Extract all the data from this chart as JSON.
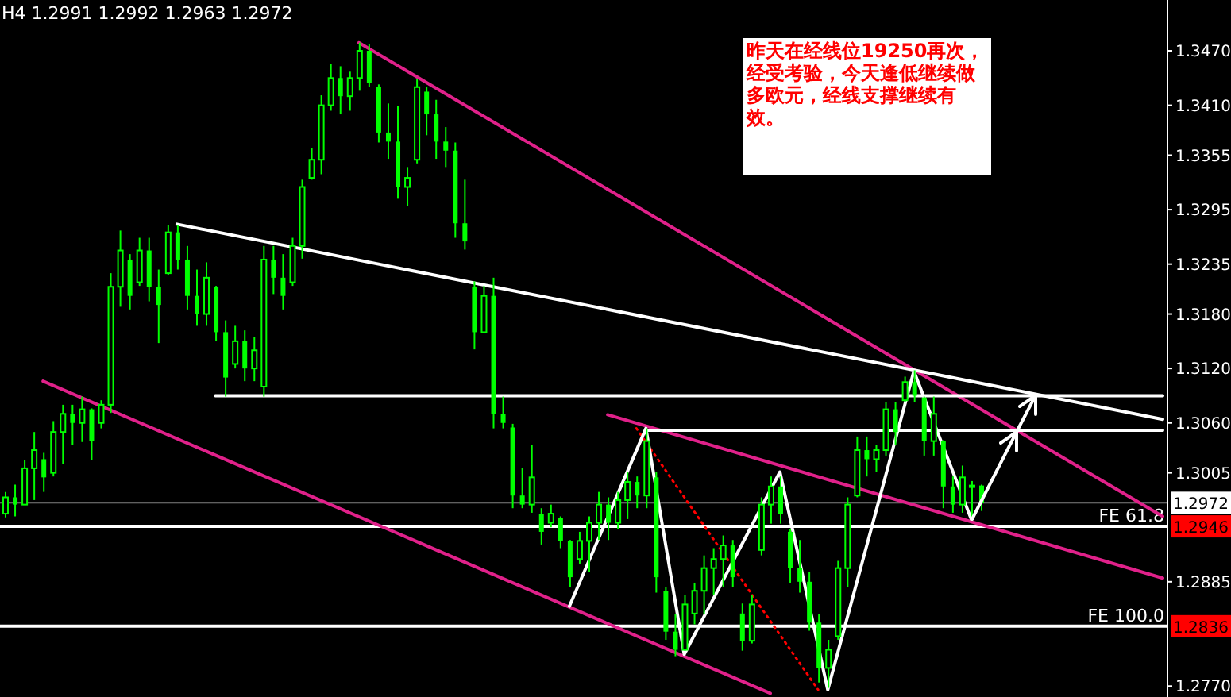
{
  "chart_data": {
    "type": "candlestick",
    "title": "H4 1.2991 1.2992 1.2963 1.2972",
    "annotations": [
      "昨天在经线位19250再次，经受考验，今天逢低继续做多欧元，经线支撑继续有效。",
      {
        "text": "1.2972",
        "y": 1.2972
      },
      {
        "text": "1.2946",
        "y": 1.2946
      },
      {
        "text": "1.2836",
        "y": 1.2836
      }
    ],
    "color": "#00ff00",
    "grid": false,
    "tick_labels": "y",
    "ylim": [
      1.2758,
      1.3526
    ],
    "yticks": [
      {
        "value": 1.347,
        "label": "1.3470"
      },
      {
        "value": 1.341,
        "label": "1.3410"
      },
      1.3355,
      1.3295,
      1.3235,
      {
        "value": 1.318,
        "label": "1.3180"
      },
      {
        "value": 1.312,
        "label": "1.3120"
      },
      {
        "value": 1.306,
        "label": "1.3060"
      },
      1.3005,
      1.2885,
      {
        "value": 1.277,
        "label": "1.2770"
      }
    ],
    "ref_lines": [
      {
        "axis": "y",
        "value": 1.2972,
        "label": null,
        "color": "#808080"
      },
      {
        "axis": "y",
        "value": 1.2946,
        "label": "FE 61.8",
        "color": "#ffffff"
      },
      {
        "axis": "y",
        "value": 1.2836,
        "label": "FE 100.0",
        "color": "#ffffff"
      }
    ],
    "categories": [
      null,
      null,
      null,
      null,
      null,
      null,
      null,
      null,
      null,
      null,
      null,
      null,
      null,
      null,
      null,
      null,
      null,
      null,
      null,
      null,
      null,
      null,
      null,
      null,
      null,
      null,
      null,
      null,
      null,
      null,
      null,
      null,
      null,
      null,
      null,
      null,
      null,
      null,
      null,
      null,
      null,
      null,
      null,
      null,
      null,
      null,
      null,
      null,
      null,
      null,
      null,
      null,
      null,
      null,
      null,
      null,
      null,
      null,
      null,
      null,
      null,
      null,
      null,
      null,
      null,
      null,
      null,
      null,
      null,
      null,
      null,
      null,
      null,
      null,
      null,
      null,
      null,
      null,
      null,
      null,
      null,
      null,
      null,
      null,
      null,
      null,
      null,
      null,
      null,
      null,
      null,
      null,
      null,
      null,
      null,
      null,
      null,
      null,
      null,
      null,
      null,
      null,
      null,
      null,
      null,
      null,
      null,
      null,
      null,
      null,
      null,
      null,
      null,
      null,
      null,
      null,
      null,
      null,
      null,
      null,
      null,
      null
    ],
    "ohlc": [
      [
        1.296,
        1.2984,
        1.2956,
        1.2978
      ],
      [
        1.2978,
        1.2992,
        1.2957,
        1.297
      ],
      [
        1.297,
        1.3019,
        1.297,
        1.301
      ],
      [
        1.301,
        1.305,
        1.2975,
        1.303
      ],
      [
        1.302,
        1.3027,
        1.2984,
        1.3
      ],
      [
        1.3005,
        1.3062,
        1.3001,
        1.305
      ],
      [
        1.305,
        1.308,
        1.3015,
        1.307
      ],
      [
        1.307,
        1.308,
        1.3036,
        1.306
      ],
      [
        1.306,
        1.3089,
        1.3039,
        1.3075
      ],
      [
        1.3075,
        1.3076,
        1.3019,
        1.304
      ],
      [
        1.306,
        1.3085,
        1.3054,
        1.308
      ],
      [
        1.308,
        1.3225,
        1.3071,
        1.321
      ],
      [
        1.321,
        1.3272,
        1.3188,
        1.325
      ],
      [
        1.324,
        1.3246,
        1.3185,
        1.32
      ],
      [
        1.3215,
        1.3264,
        1.3211,
        1.325
      ],
      [
        1.325,
        1.3264,
        1.3194,
        1.321
      ],
      [
        1.321,
        1.3229,
        1.3148,
        1.319
      ],
      [
        1.3225,
        1.3278,
        1.3223,
        1.327
      ],
      [
        1.327,
        1.3278,
        1.3229,
        1.324
      ],
      [
        1.324,
        1.3255,
        1.3185,
        1.32
      ],
      [
        1.32,
        1.3229,
        1.3167,
        1.318
      ],
      [
        1.318,
        1.3237,
        1.3167,
        1.322
      ],
      [
        1.321,
        1.3211,
        1.315,
        1.316
      ],
      [
        1.316,
        1.3173,
        1.3089,
        1.311
      ],
      [
        1.3125,
        1.3167,
        1.312,
        1.315
      ],
      [
        1.315,
        1.3162,
        1.3106,
        1.312
      ],
      [
        1.312,
        1.3155,
        1.3106,
        1.314
      ],
      [
        1.31,
        1.3255,
        1.3089,
        1.324
      ],
      [
        1.324,
        1.3255,
        1.3202,
        1.322
      ],
      [
        1.322,
        1.3246,
        1.3185,
        1.32
      ],
      [
        1.3215,
        1.3264,
        1.3211,
        1.3255
      ],
      [
        1.3255,
        1.3328,
        1.3241,
        1.332
      ],
      [
        1.333,
        1.3363,
        1.3328,
        1.335
      ],
      [
        1.335,
        1.3421,
        1.3334,
        1.341
      ],
      [
        1.341,
        1.3456,
        1.3404,
        1.344
      ],
      [
        1.344,
        1.3453,
        1.34,
        1.342
      ],
      [
        1.342,
        1.3447,
        1.3404,
        1.344
      ],
      [
        1.344,
        1.3479,
        1.3426,
        1.347
      ],
      [
        1.347,
        1.3477,
        1.343,
        1.3435
      ],
      [
        1.343,
        1.3433,
        1.3369,
        1.338
      ],
      [
        1.338,
        1.3412,
        1.3351,
        1.337
      ],
      [
        1.337,
        1.3409,
        1.3307,
        1.332
      ],
      [
        1.332,
        1.3342,
        1.3299,
        1.333
      ],
      [
        1.335,
        1.3439,
        1.3346,
        1.343
      ],
      [
        1.3425,
        1.343,
        1.3377,
        1.34
      ],
      [
        1.34,
        1.3416,
        1.3351,
        1.337
      ],
      [
        1.337,
        1.3386,
        1.3342,
        1.336
      ],
      [
        1.336,
        1.3369,
        1.3264,
        1.328
      ],
      [
        1.328,
        1.3328,
        1.3251,
        1.326
      ],
      [
        1.321,
        1.3216,
        1.3141,
        1.316
      ],
      [
        1.316,
        1.3211,
        1.3159,
        1.32
      ],
      [
        1.32,
        1.322,
        1.3054,
        1.307
      ],
      [
        1.307,
        1.3089,
        1.3054,
        1.306
      ],
      [
        1.3055,
        1.3059,
        1.2966,
        1.298
      ],
      [
        1.298,
        1.301,
        1.2966,
        1.297
      ],
      [
        1.297,
        1.3036,
        1.2961,
        1.3
      ],
      [
        1.296,
        1.2966,
        1.2926,
        1.294
      ],
      [
        1.295,
        1.297,
        1.2945,
        1.296
      ],
      [
        1.2955,
        1.2957,
        1.2922,
        1.293
      ],
      [
        1.293,
        1.2931,
        1.2879,
        1.289
      ],
      [
        1.291,
        1.294,
        1.2905,
        1.293
      ],
      [
        1.293,
        1.2957,
        1.2896,
        1.295
      ],
      [
        1.295,
        1.2984,
        1.2931,
        1.297
      ],
      [
        1.297,
        1.2978,
        1.2931,
        1.295
      ],
      [
        1.295,
        1.2984,
        1.2943,
        1.2975
      ],
      [
        1.2975,
        1.3006,
        1.2954,
        1.2995
      ],
      [
        1.2995,
        1.3001,
        1.2966,
        1.298
      ],
      [
        1.298,
        1.3054,
        1.2966,
        1.304
      ],
      [
        1.3,
        1.3006,
        1.2873,
        1.289
      ],
      [
        1.2875,
        1.2879,
        1.2821,
        1.283
      ],
      [
        1.283,
        1.2849,
        1.2803,
        1.281
      ],
      [
        1.281,
        1.287,
        1.2809,
        1.286
      ],
      [
        1.285,
        1.2884,
        1.2838,
        1.2875
      ],
      [
        1.2875,
        1.2914,
        1.2849,
        1.29
      ],
      [
        1.29,
        1.2922,
        1.287,
        1.291
      ],
      [
        1.291,
        1.2936,
        1.2879,
        1.2925
      ],
      [
        1.2925,
        1.2931,
        1.2879,
        1.289
      ],
      [
        1.285,
        1.2861,
        1.2809,
        1.282
      ],
      [
        1.282,
        1.287,
        1.2817,
        1.286
      ],
      [
        1.292,
        1.2978,
        1.2914,
        1.297
      ],
      [
        1.297,
        1.3001,
        1.2949,
        1.299
      ],
      [
        1.299,
        1.3001,
        1.2949,
        1.296
      ],
      [
        1.294,
        1.2943,
        1.2884,
        1.29
      ],
      [
        1.29,
        1.2931,
        1.2873,
        1.2885
      ],
      [
        1.2885,
        1.2896,
        1.2831,
        1.284
      ],
      [
        1.284,
        1.2849,
        1.2774,
        1.279
      ],
      [
        1.279,
        1.2821,
        1.2768,
        1.281
      ],
      [
        1.2825,
        1.2908,
        1.2821,
        1.29
      ],
      [
        1.29,
        1.2978,
        1.2879,
        1.297
      ],
      [
        1.298,
        1.3045,
        1.2978,
        1.303
      ],
      [
        1.303,
        1.3045,
        1.3001,
        1.302
      ],
      [
        1.302,
        1.3036,
        1.3006,
        1.303
      ],
      [
        1.303,
        1.3083,
        1.3024,
        1.3075
      ],
      [
        1.3075,
        1.3083,
        1.3036,
        1.305
      ],
      [
        1.3085,
        1.3111,
        1.3083,
        1.3105
      ],
      [
        1.3105,
        1.3118,
        1.3083,
        1.309
      ],
      [
        1.3088,
        1.3089,
        1.3024,
        1.304
      ],
      [
        1.304,
        1.3089,
        1.3024,
        1.307
      ],
      [
        1.304,
        1.3041,
        1.2966,
        1.299
      ],
      [
        1.299,
        1.3001,
        1.2961,
        1.297
      ],
      [
        1.297,
        1.3013,
        1.2961,
        1.3
      ],
      [
        1.299,
        1.2996,
        1.2954,
        1.2991
      ],
      [
        1.2991,
        1.2992,
        1.2963,
        1.2972
      ],
      null,
      null,
      null,
      null,
      null,
      null,
      null,
      null,
      null,
      null,
      null,
      null,
      null,
      null,
      null,
      null,
      null,
      null,
      null
    ],
    "series": [
      {
        "type": "line",
        "color": "#e0218a",
        "line_style": "solid",
        "values": [
          null,
          null,
          null,
          null,
          null,
          null,
          null,
          null,
          null,
          null,
          null,
          null,
          null,
          null,
          null,
          null,
          null,
          null,
          null,
          null,
          null,
          null,
          null,
          null,
          null,
          null,
          null,
          null,
          null,
          null,
          null,
          null,
          null,
          null,
          null,
          null,
          null,
          1.3479,
          null,
          null,
          null,
          null,
          null,
          null,
          null,
          null,
          null,
          null,
          null,
          null,
          null,
          null,
          null,
          null,
          null,
          null,
          null,
          null,
          null,
          null,
          null,
          null,
          null,
          null,
          null,
          null,
          null,
          null,
          null,
          null,
          null,
          null,
          null,
          null,
          null,
          null,
          null,
          null,
          null,
          null,
          null,
          null,
          null,
          null,
          null,
          null,
          null,
          null,
          null,
          null,
          null,
          null,
          null,
          null,
          null,
          null,
          null,
          null,
          null,
          null,
          null,
          null,
          null,
          null,
          null,
          null,
          null,
          null,
          null,
          null,
          null,
          null,
          null,
          null,
          null,
          null,
          null,
          null,
          null,
          null,
          null,
          1.2957
        ]
      },
      {
        "type": "line",
        "color": "#ffffff",
        "line_style": "solid",
        "values": [
          null,
          null,
          null,
          null,
          null,
          null,
          null,
          null,
          null,
          null,
          null,
          null,
          null,
          null,
          null,
          null,
          null,
          null,
          1.3279,
          null,
          null,
          null,
          null,
          null,
          null,
          null,
          null,
          null,
          null,
          null,
          null,
          null,
          null,
          null,
          null,
          null,
          null,
          null,
          null,
          null,
          null,
          null,
          null,
          null,
          null,
          null,
          null,
          null,
          null,
          null,
          null,
          null,
          null,
          null,
          null,
          null,
          null,
          null,
          null,
          null,
          null,
          null,
          null,
          null,
          null,
          null,
          null,
          null,
          null,
          null,
          null,
          null,
          null,
          null,
          null,
          null,
          null,
          null,
          null,
          null,
          null,
          null,
          null,
          null,
          null,
          null,
          null,
          null,
          null,
          null,
          null,
          null,
          null,
          null,
          null,
          null,
          null,
          null,
          null,
          null,
          null,
          null,
          null,
          null,
          null,
          null,
          null,
          null,
          null,
          null,
          null,
          null,
          null,
          null,
          null,
          null,
          null,
          null,
          null,
          null,
          null,
          1.3064
        ]
      },
      {
        "type": "line",
        "color": "#e0218a",
        "line_style": "solid",
        "values": [
          null,
          null,
          null,
          null,
          1.3106,
          null,
          null,
          null,
          null,
          null,
          null,
          null,
          null,
          null,
          null,
          null,
          null,
          null,
          null,
          null,
          null,
          null,
          null,
          null,
          null,
          null,
          null,
          null,
          null,
          null,
          null,
          null,
          null,
          null,
          null,
          null,
          null,
          null,
          null,
          null,
          null,
          null,
          null,
          null,
          null,
          null,
          null,
          null,
          null,
          null,
          null,
          null,
          null,
          null,
          null,
          null,
          null,
          null,
          null,
          null,
          null,
          null,
          null,
          null,
          null,
          null,
          null,
          null,
          null,
          null,
          null,
          null,
          null,
          null,
          null,
          null,
          null,
          null,
          null,
          null,
          1.2762,
          null,
          null,
          null,
          null,
          null,
          null,
          null,
          null,
          null,
          null,
          null,
          null,
          null,
          null,
          null,
          null,
          null,
          null,
          null,
          null,
          null,
          null,
          null,
          null,
          null,
          null,
          null,
          null,
          null,
          null,
          null,
          null,
          null,
          null,
          null,
          null,
          null,
          null,
          null,
          null,
          null
        ]
      },
      {
        "type": "line",
        "color": "#e0218a",
        "line_style": "solid",
        "values": [
          null,
          null,
          null,
          null,
          null,
          null,
          null,
          null,
          null,
          null,
          null,
          null,
          null,
          null,
          null,
          null,
          null,
          null,
          null,
          null,
          null,
          null,
          null,
          null,
          null,
          null,
          null,
          null,
          null,
          null,
          null,
          null,
          null,
          null,
          null,
          null,
          null,
          null,
          null,
          null,
          null,
          null,
          null,
          null,
          null,
          null,
          null,
          null,
          null,
          null,
          null,
          null,
          null,
          null,
          null,
          null,
          null,
          null,
          null,
          null,
          null,
          null,
          null,
          1.3069,
          null,
          null,
          null,
          null,
          null,
          null,
          null,
          null,
          null,
          null,
          null,
          null,
          null,
          null,
          null,
          null,
          null,
          null,
          null,
          null,
          null,
          null,
          null,
          null,
          null,
          null,
          null,
          null,
          null,
          null,
          null,
          null,
          null,
          null,
          null,
          null,
          null,
          null,
          null,
          null,
          null,
          null,
          null,
          null,
          null,
          null,
          null,
          null,
          null,
          null,
          null,
          null,
          null,
          null,
          null,
          null,
          null,
          1.2889
        ]
      },
      {
        "type": "line",
        "color": "#ffffff",
        "line_style": "solid",
        "values": [
          null,
          null,
          null,
          null,
          null,
          null,
          null,
          null,
          null,
          null,
          null,
          null,
          null,
          null,
          null,
          null,
          null,
          null,
          null,
          null,
          null,
          null,
          1.309,
          null,
          null,
          null,
          null,
          null,
          null,
          null,
          null,
          null,
          null,
          null,
          null,
          null,
          null,
          null,
          null,
          null,
          null,
          null,
          null,
          null,
          null,
          null,
          null,
          null,
          null,
          null,
          null,
          null,
          null,
          null,
          null,
          null,
          null,
          null,
          null,
          null,
          null,
          null,
          null,
          null,
          null,
          null,
          null,
          null,
          null,
          null,
          null,
          null,
          null,
          null,
          null,
          null,
          null,
          null,
          null,
          null,
          null,
          null,
          null,
          null,
          null,
          null,
          null,
          null,
          null,
          null,
          null,
          null,
          null,
          null,
          null,
          null,
          null,
          null,
          null,
          null,
          null,
          null,
          null,
          null,
          null,
          null,
          null,
          null,
          null,
          null,
          null,
          null,
          null,
          null,
          null,
          null,
          null,
          null,
          null,
          null,
          null,
          1.309
        ]
      },
      {
        "type": "line",
        "color": "#ffffff",
        "line_style": "solid",
        "values": [
          null,
          null,
          null,
          null,
          null,
          null,
          null,
          null,
          null,
          null,
          null,
          null,
          null,
          null,
          null,
          null,
          null,
          null,
          null,
          null,
          null,
          null,
          null,
          null,
          null,
          null,
          null,
          null,
          null,
          null,
          null,
          null,
          null,
          null,
          null,
          null,
          null,
          null,
          null,
          null,
          null,
          null,
          null,
          null,
          null,
          null,
          null,
          null,
          null,
          null,
          null,
          null,
          null,
          null,
          null,
          null,
          null,
          null,
          null,
          null,
          null,
          null,
          null,
          null,
          null,
          null,
          null,
          1.3052,
          null,
          null,
          null,
          null,
          null,
          null,
          null,
          null,
          null,
          null,
          null,
          null,
          null,
          null,
          null,
          null,
          null,
          null,
          null,
          null,
          null,
          null,
          null,
          null,
          null,
          null,
          null,
          null,
          null,
          null,
          null,
          null,
          null,
          null,
          null,
          null,
          null,
          null,
          null,
          null,
          null,
          null,
          null,
          null,
          null,
          null,
          null,
          null,
          null,
          null,
          null,
          null,
          null,
          1.3052
        ]
      },
      {
        "type": "line",
        "color": "#ff0000",
        "line_style": "dotted",
        "values": [
          null,
          null,
          null,
          null,
          null,
          null,
          null,
          null,
          null,
          null,
          null,
          null,
          null,
          null,
          null,
          null,
          null,
          null,
          null,
          null,
          null,
          null,
          null,
          null,
          null,
          null,
          null,
          null,
          null,
          null,
          null,
          null,
          null,
          null,
          null,
          null,
          null,
          null,
          null,
          null,
          null,
          null,
          null,
          null,
          null,
          null,
          null,
          null,
          null,
          null,
          null,
          null,
          null,
          null,
          null,
          null,
          null,
          null,
          null,
          null,
          null,
          null,
          null,
          null,
          null,
          null,
          1.3054,
          null,
          null,
          null,
          null,
          null,
          null,
          null,
          null,
          null,
          null,
          null,
          null,
          null,
          null,
          null,
          null,
          null,
          null,
          1.2766,
          null,
          null,
          null,
          null,
          null,
          null,
          null,
          null,
          null,
          null,
          null,
          null,
          null,
          null,
          null,
          null,
          null,
          null,
          null,
          null,
          null,
          null,
          null,
          null,
          null,
          null,
          null,
          null,
          null,
          null,
          null,
          null,
          null,
          null,
          null,
          null
        ]
      },
      {
        "type": "line",
        "color": "#ffffff",
        "line_style": "solid",
        "values": [
          null,
          null,
          null,
          null,
          null,
          null,
          null,
          null,
          null,
          null,
          null,
          null,
          null,
          null,
          null,
          null,
          null,
          null,
          null,
          null,
          null,
          null,
          null,
          null,
          null,
          null,
          null,
          null,
          null,
          null,
          null,
          null,
          null,
          null,
          null,
          null,
          null,
          null,
          null,
          null,
          null,
          null,
          null,
          null,
          null,
          null,
          null,
          null,
          null,
          null,
          null,
          null,
          null,
          null,
          null,
          null,
          null,
          null,
          null,
          1.2858,
          null,
          null,
          null,
          null,
          null,
          null,
          null,
          1.3054,
          null,
          null,
          null,
          1.2805,
          null,
          null,
          null,
          null,
          null,
          null,
          null,
          null,
          null,
          1.3006,
          null,
          null,
          null,
          null,
          1.2766,
          null,
          null,
          null,
          null,
          null,
          null,
          null,
          null,
          1.3117,
          null,
          null,
          null,
          null,
          null,
          1.2954,
          null,
          null,
          null,
          null,
          null,
          null,
          null,
          null,
          null,
          null,
          null,
          null,
          null,
          null,
          null,
          null,
          null,
          null,
          null,
          null
        ]
      }
    ]
  }
}
